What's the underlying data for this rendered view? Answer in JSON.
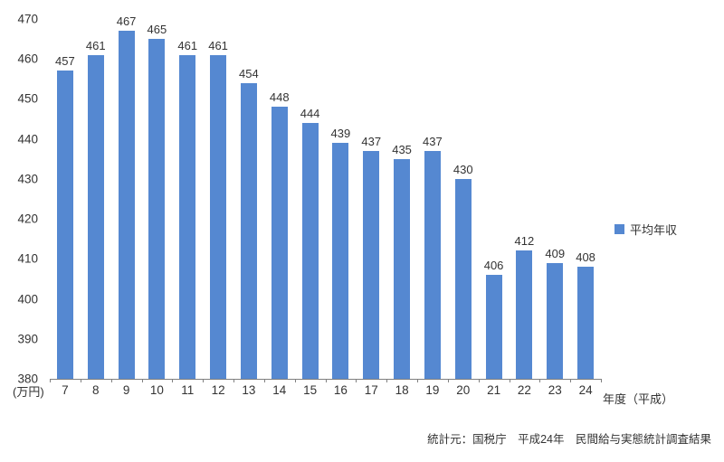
{
  "chart_data": {
    "type": "bar",
    "title": "",
    "categories": [
      "7",
      "8",
      "9",
      "10",
      "11",
      "12",
      "13",
      "14",
      "15",
      "16",
      "17",
      "18",
      "19",
      "20",
      "21",
      "22",
      "23",
      "24"
    ],
    "values": [
      457,
      461,
      467,
      465,
      461,
      461,
      454,
      448,
      444,
      439,
      437,
      435,
      437,
      430,
      406,
      412,
      409,
      408
    ],
    "series_name": "平均年収",
    "xlabel": "年度（平成）",
    "ylabel": "(万円)",
    "ylim": [
      380,
      470
    ],
    "ytick_step": 10,
    "grid": false,
    "legend_position": "right",
    "bar_color": "#5588d1",
    "value_label_color": "#333333",
    "axis_text_color": "#333333",
    "axis_line_color": "#808080"
  },
  "legend": {
    "label": "平均年収"
  },
  "axis_labels": {
    "y_unit": "(万円)",
    "x_unit": "年度（平成）"
  },
  "footer": {
    "source": "統計元：国税庁　平成24年　民間給与実態統計調査結果"
  }
}
